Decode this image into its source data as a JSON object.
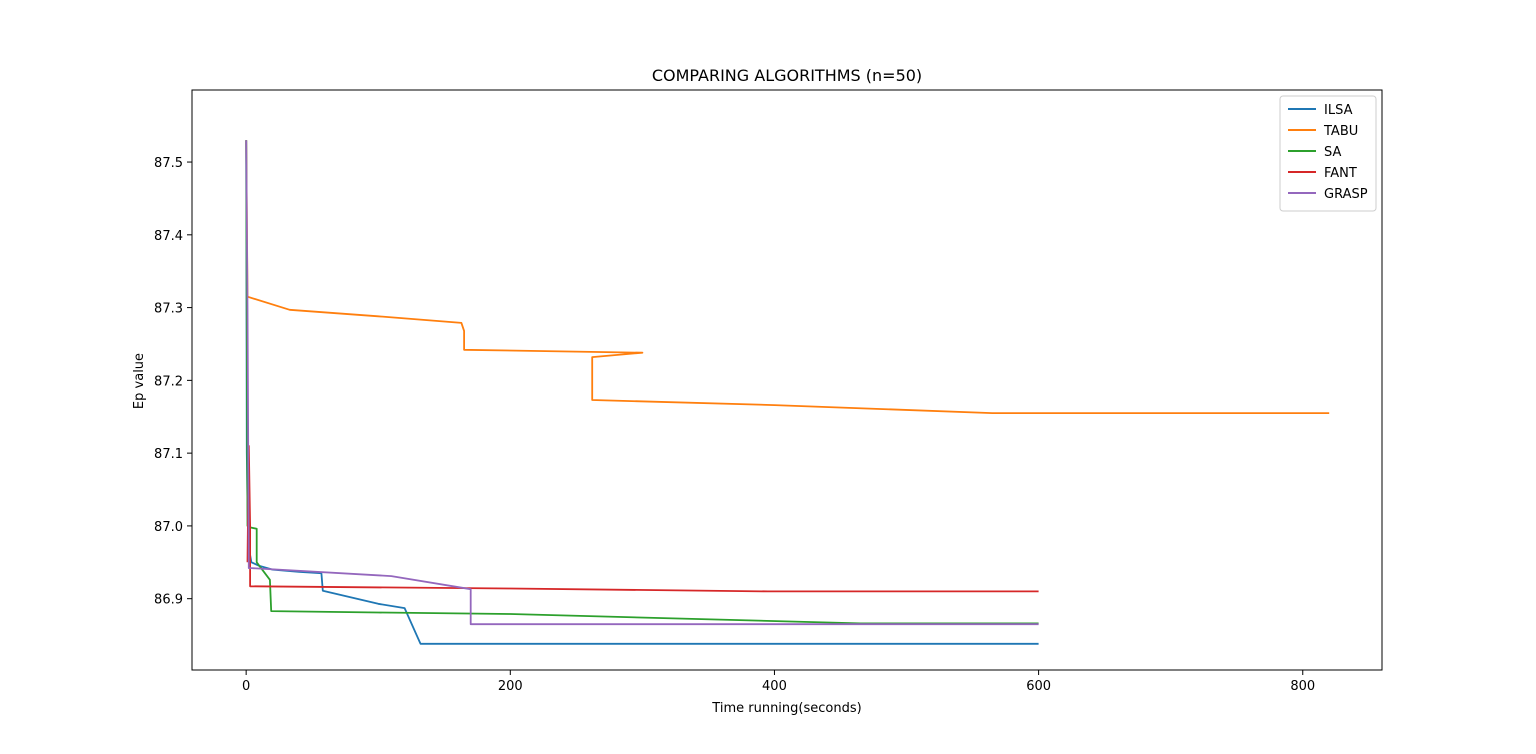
{
  "chart_data": {
    "type": "line",
    "title": "COMPARING ALGORITHMS (n=50)",
    "xlabel": "Time running(seconds)",
    "ylabel": "Ep value",
    "xlim": [
      -41,
      860
    ],
    "ylim": [
      86.802,
      87.599
    ],
    "xticks": [
      0,
      200,
      400,
      600,
      800
    ],
    "yticks": [
      86.9,
      87.0,
      87.1,
      87.2,
      87.3,
      87.4,
      87.5
    ],
    "grid": false,
    "legend_position": "top-right",
    "series": [
      {
        "name": "ILSA",
        "color": "#1f77b4",
        "x": [
          0,
          0.5,
          1,
          2,
          4,
          10,
          20,
          40,
          57,
          58,
          100,
          120,
          132,
          600
        ],
        "y": [
          87.53,
          87.1,
          87.03,
          86.97,
          86.95,
          86.945,
          86.94,
          86.937,
          86.935,
          86.911,
          86.893,
          86.887,
          86.838,
          86.838
        ]
      },
      {
        "name": "TABU",
        "color": "#ff7f0e",
        "x": [
          0,
          1,
          33,
          100,
          163,
          165,
          165,
          300,
          262,
          262,
          400,
          565,
          820
        ],
        "y": [
          87.53,
          87.315,
          87.297,
          87.288,
          87.279,
          87.268,
          87.242,
          87.238,
          87.232,
          87.173,
          87.166,
          87.155,
          87.155
        ]
      },
      {
        "name": "SA",
        "color": "#2ca02c",
        "x": [
          0,
          1,
          3,
          8,
          8,
          18,
          19,
          100,
          200,
          465,
          600
        ],
        "y": [
          87.53,
          87.0,
          86.998,
          86.996,
          86.95,
          86.926,
          86.883,
          86.881,
          86.879,
          86.866,
          86.866
        ]
      },
      {
        "name": "FANT",
        "color": "#d62728",
        "x": [
          1,
          2,
          3,
          3,
          200,
          395,
          600
        ],
        "y": [
          86.95,
          87.11,
          87.0,
          86.917,
          86.914,
          86.91,
          86.91
        ]
      },
      {
        "name": "GRASP",
        "color": "#9467bd",
        "x": [
          0,
          1,
          2,
          4,
          110,
          170,
          170,
          600
        ],
        "y": [
          87.53,
          87.3,
          86.942,
          86.942,
          86.931,
          86.913,
          86.865,
          86.865
        ]
      }
    ]
  }
}
